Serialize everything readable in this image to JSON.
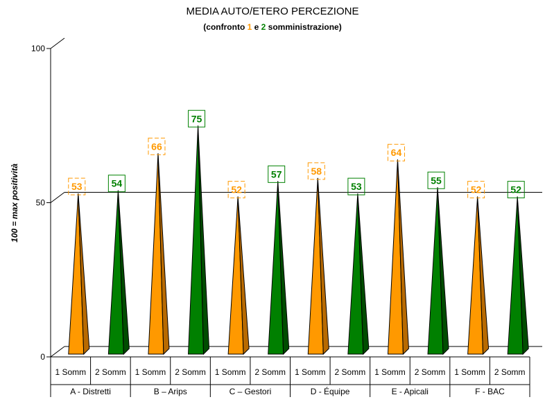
{
  "chart_data": {
    "type": "bar",
    "title": "MEDIA AUTO/ETERO PERCEZIONE",
    "subtitle": {
      "prefix": "(confronto ",
      "first": "1",
      "middle": " e ",
      "second": "2",
      "suffix": " somministrazione)"
    },
    "ylabel": "100 = max positività",
    "ylim": [
      0,
      100
    ],
    "yticks": [
      "0",
      "50",
      "100"
    ],
    "ytick_values": [
      0,
      50,
      100
    ],
    "gridlines": [
      50
    ],
    "bar_shape": "cone",
    "groups": [
      {
        "label": "A - Distretti",
        "subcategories": [
          "1 Somm",
          "2 Somm"
        ],
        "values": [
          53,
          54
        ]
      },
      {
        "label": "B – Arips",
        "subcategories": [
          "1 Somm",
          "2 Somm"
        ],
        "values": [
          66,
          75
        ]
      },
      {
        "label": "C – Gestori",
        "subcategories": [
          "1 Somm",
          "2 Somm"
        ],
        "values": [
          52,
          57
        ]
      },
      {
        "label": "D - Équipe",
        "subcategories": [
          "1 Somm",
          "2 Somm"
        ],
        "values": [
          58,
          53
        ]
      },
      {
        "label": "E - Apicali",
        "subcategories": [
          "1 Somm",
          "2 Somm"
        ],
        "values": [
          64,
          55
        ]
      },
      {
        "label": "F - BAC",
        "subcategories": [
          "1 Somm",
          "2 Somm"
        ],
        "values": [
          52,
          52
        ]
      }
    ],
    "series_colors": {
      "first": "#ff9900",
      "second": "#008000"
    },
    "series_dark_colors": {
      "first": "#b86a00",
      "second": "#004d00"
    }
  }
}
